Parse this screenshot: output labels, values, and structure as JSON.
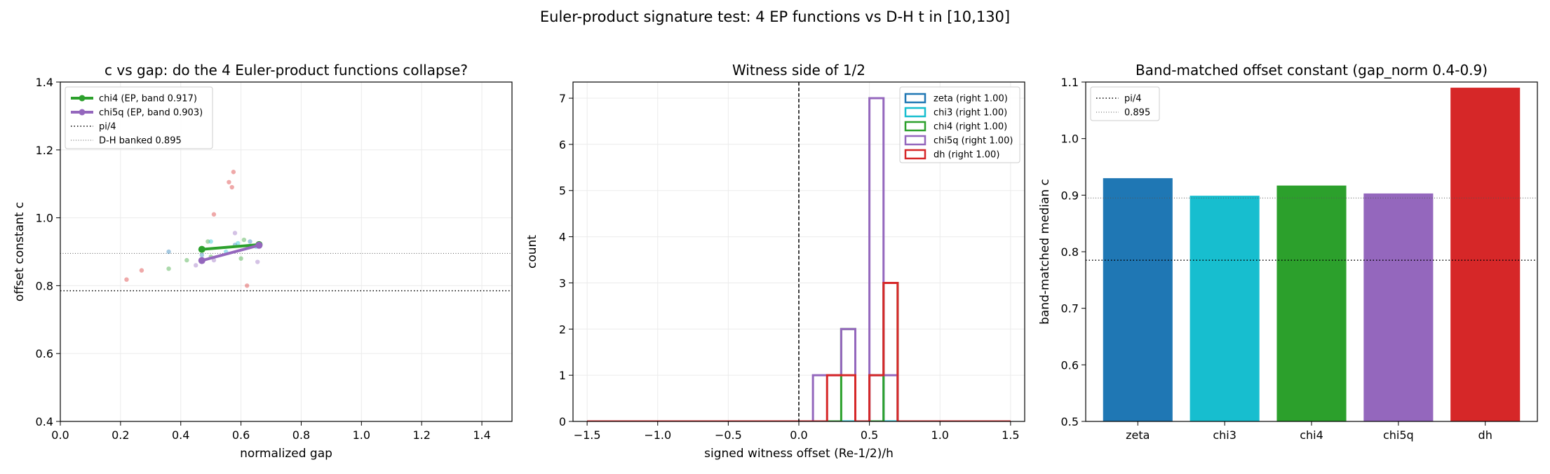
{
  "figure": {
    "suptitle": "Euler-product signature test: 4 EP functions vs D-H   t in [10,130]"
  },
  "colors": {
    "zeta": "#1f77b4",
    "chi3": "#17becf",
    "chi4": "#2ca02c",
    "chi5q": "#9467bd",
    "dh": "#d62728"
  },
  "chart_data": [
    {
      "type": "scatter",
      "title": "c vs gap: do the 4 Euler-product functions collapse?",
      "xlabel": "normalized gap",
      "ylabel": "offset constant c",
      "xlim": [
        0.0,
        1.5
      ],
      "ylim": [
        0.4,
        1.4
      ],
      "xticks": [
        "0.0",
        "0.2",
        "0.4",
        "0.6",
        "0.8",
        "1.0",
        "1.2",
        "1.4"
      ],
      "yticks": [
        "0.4",
        "0.6",
        "0.8",
        "1.0",
        "1.2",
        "1.4"
      ],
      "grid": true,
      "legend_position": "top-left",
      "reference_lines": [
        {
          "name": "pi/4",
          "y": 0.785,
          "style": "dotted"
        },
        {
          "name": "D-H banked 0.895",
          "y": 0.895,
          "style": "fine-dotted"
        }
      ],
      "lines": [
        {
          "name": "chi4 (EP, band 0.917)",
          "color_key": "chi4",
          "x": [
            0.47,
            0.66
          ],
          "y": [
            0.907,
            0.921
          ]
        },
        {
          "name": "chi5q (EP, band 0.903)",
          "color_key": "chi5q",
          "x": [
            0.47,
            0.66
          ],
          "y": [
            0.874,
            0.919
          ]
        }
      ],
      "points": [
        {
          "x": 0.22,
          "y": 0.818,
          "color_key": "dh"
        },
        {
          "x": 0.27,
          "y": 0.845,
          "color_key": "dh"
        },
        {
          "x": 0.36,
          "y": 0.85,
          "color_key": "chi4"
        },
        {
          "x": 0.36,
          "y": 0.9,
          "color_key": "zeta"
        },
        {
          "x": 0.42,
          "y": 0.875,
          "color_key": "chi4"
        },
        {
          "x": 0.45,
          "y": 0.86,
          "color_key": "chi5q"
        },
        {
          "x": 0.47,
          "y": 0.89,
          "color_key": "zeta"
        },
        {
          "x": 0.49,
          "y": 0.93,
          "color_key": "chi4"
        },
        {
          "x": 0.5,
          "y": 0.93,
          "color_key": "chi3"
        },
        {
          "x": 0.5,
          "y": 0.885,
          "color_key": "chi4"
        },
        {
          "x": 0.51,
          "y": 1.01,
          "color_key": "dh"
        },
        {
          "x": 0.51,
          "y": 0.875,
          "color_key": "chi5q"
        },
        {
          "x": 0.55,
          "y": 0.9,
          "color_key": "chi3"
        },
        {
          "x": 0.56,
          "y": 1.105,
          "color_key": "dh"
        },
        {
          "x": 0.57,
          "y": 1.09,
          "color_key": "dh"
        },
        {
          "x": 0.575,
          "y": 1.135,
          "color_key": "dh"
        },
        {
          "x": 0.58,
          "y": 0.955,
          "color_key": "chi5q"
        },
        {
          "x": 0.58,
          "y": 0.92,
          "color_key": "zeta"
        },
        {
          "x": 0.59,
          "y": 0.925,
          "color_key": "chi3"
        },
        {
          "x": 0.6,
          "y": 0.88,
          "color_key": "chi4"
        },
        {
          "x": 0.61,
          "y": 0.935,
          "color_key": "chi4"
        },
        {
          "x": 0.62,
          "y": 0.8,
          "color_key": "dh"
        },
        {
          "x": 0.63,
          "y": 0.93,
          "color_key": "zeta"
        },
        {
          "x": 0.65,
          "y": 0.915,
          "color_key": "chi3"
        },
        {
          "x": 0.655,
          "y": 0.87,
          "color_key": "chi5q"
        }
      ]
    },
    {
      "type": "histogram",
      "title": "Witness side of 1/2",
      "xlabel": "signed witness offset (Re-1/2)/h",
      "ylabel": "count",
      "xlim": [
        -1.6,
        1.6
      ],
      "ylim": [
        0,
        7.35
      ],
      "xticks": [
        "−1.5",
        "−1.0",
        "−0.5",
        "0.0",
        "0.5",
        "1.0",
        "1.5"
      ],
      "yticks": [
        "0",
        "1",
        "2",
        "3",
        "4",
        "5",
        "6",
        "7"
      ],
      "grid": true,
      "legend_position": "top-right",
      "reference_lines": [
        {
          "x": 0.0,
          "style": "dashed"
        }
      ],
      "bin_edges": [
        -1.5,
        -1.4,
        -1.3,
        -1.2,
        -1.1,
        -1.0,
        -0.9,
        -0.8,
        -0.7,
        -0.6,
        -0.5,
        -0.4,
        -0.3,
        -0.2,
        -0.1,
        0.0,
        0.1,
        0.2,
        0.3,
        0.4,
        0.5,
        0.6,
        0.7,
        0.8,
        0.9,
        1.0,
        1.1,
        1.2,
        1.3,
        1.4,
        1.5
      ],
      "series": [
        {
          "name": "zeta (right 1.00)",
          "color_key": "zeta",
          "counts": [
            0,
            0,
            0,
            0,
            0,
            0,
            0,
            0,
            0,
            0,
            0,
            0,
            0,
            0,
            0,
            0,
            0,
            0,
            0,
            0,
            1,
            0,
            0,
            0,
            0,
            0,
            0,
            0,
            0,
            0
          ]
        },
        {
          "name": "chi3 (right 1.00)",
          "color_key": "chi3",
          "counts": [
            0,
            0,
            0,
            0,
            0,
            0,
            0,
            0,
            0,
            0,
            0,
            0,
            0,
            0,
            0,
            0,
            0,
            0,
            0,
            0,
            0,
            0,
            0,
            0,
            0,
            0,
            0,
            0,
            0,
            0
          ]
        },
        {
          "name": "chi4 (right 1.00)",
          "color_key": "chi4",
          "counts": [
            0,
            0,
            0,
            0,
            0,
            0,
            0,
            0,
            0,
            0,
            0,
            0,
            0,
            0,
            0,
            0,
            0,
            0,
            2,
            0,
            0,
            3,
            0,
            0,
            0,
            0,
            0,
            0,
            0,
            0
          ]
        },
        {
          "name": "chi5q (right 1.00)",
          "color_key": "chi5q",
          "counts": [
            0,
            0,
            0,
            0,
            0,
            0,
            0,
            0,
            0,
            0,
            0,
            0,
            0,
            0,
            0,
            0,
            1,
            1,
            2,
            0,
            7,
            1,
            0,
            0,
            0,
            0,
            0,
            0,
            0,
            0
          ]
        },
        {
          "name": "dh (right 1.00)",
          "color_key": "dh",
          "counts": [
            0,
            0,
            0,
            0,
            0,
            0,
            0,
            0,
            0,
            0,
            0,
            0,
            0,
            0,
            0,
            0,
            0,
            1,
            1,
            0,
            1,
            3,
            0,
            0,
            0,
            0,
            0,
            0,
            0,
            0
          ]
        }
      ]
    },
    {
      "type": "bar",
      "title": "Band-matched offset constant (gap_norm 0.4-0.9)",
      "xlabel": "",
      "ylabel": "band-matched median c",
      "categories": [
        "zeta",
        "chi3",
        "chi4",
        "chi5q",
        "dh"
      ],
      "values": [
        0.93,
        0.899,
        0.917,
        0.903,
        1.09
      ],
      "ylim": [
        0.5,
        1.1
      ],
      "yticks": [
        "0.5",
        "0.6",
        "0.7",
        "0.8",
        "0.9",
        "1.0",
        "1.1"
      ],
      "grid": false,
      "legend_position": "top-left",
      "reference_lines": [
        {
          "name": "pi/4",
          "y": 0.785,
          "style": "dotted"
        },
        {
          "name": "0.895",
          "y": 0.895,
          "style": "fine-dotted"
        }
      ]
    }
  ]
}
